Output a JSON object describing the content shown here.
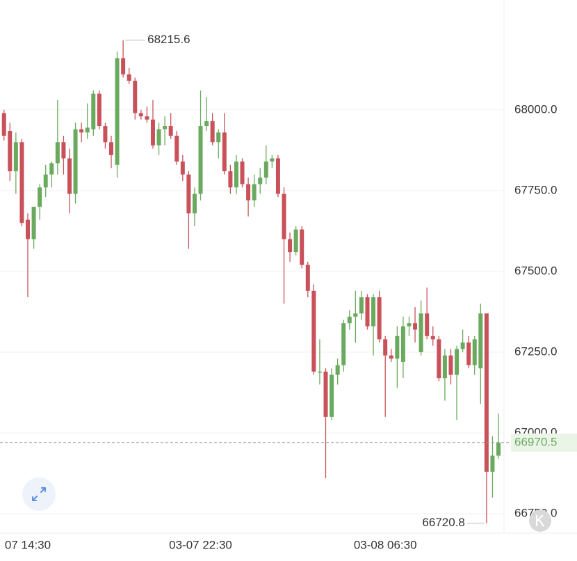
{
  "chart_data": {
    "type": "candlestick",
    "categories": [
      null,
      null,
      null,
      null,
      "07 14:30",
      null,
      null,
      null,
      null,
      null,
      null,
      null,
      null,
      null,
      null,
      null,
      null,
      null,
      null,
      null,
      null,
      null,
      null,
      null,
      null,
      null,
      null,
      null,
      null,
      null,
      null,
      null,
      null,
      "03-07 22:30",
      null,
      null,
      null,
      null,
      null,
      null,
      null,
      null,
      null,
      null,
      null,
      null,
      null,
      null,
      null,
      null,
      null,
      null,
      null,
      null,
      null,
      null,
      null,
      null,
      null,
      null,
      null,
      null,
      null,
      null,
      "03-08 06:30",
      null,
      null,
      null,
      null,
      null,
      null,
      null,
      null,
      null,
      null,
      null,
      null,
      null,
      null,
      null,
      null,
      null,
      null,
      null
    ],
    "open": [
      67990,
      67935,
      67810,
      67900,
      67660,
      67600,
      67700,
      67760,
      67800,
      67835,
      67900,
      67850,
      67740,
      67940,
      67930,
      67940,
      68050,
      67950,
      67900,
      67830,
      68160,
      68110,
      68090,
      67990,
      67980,
      67970,
      67890,
      67940,
      67950,
      67920,
      67840,
      67800,
      67680,
      67740,
      67950,
      67965,
      67900,
      67930,
      67810,
      67760,
      67840,
      67770,
      67720,
      67770,
      67790,
      67840,
      67850,
      67740,
      67600,
      67560,
      67630,
      67520,
      67440,
      67190,
      67190,
      67050,
      67180,
      67210,
      67340,
      67360,
      67370,
      67420,
      67330,
      67420,
      67290,
      67240,
      67230,
      67220,
      67330,
      67340,
      67250,
      67370,
      67300,
      67290,
      67170,
      67240,
      67180,
      67260,
      67280,
      67210,
      67200,
      67370,
      66880,
      66930
    ],
    "high": [
      68000,
      67960,
      67930,
      67910,
      67680,
      67700,
      67770,
      67830,
      67840,
      68030,
      67920,
      67880,
      67960,
      67960,
      68020,
      68060,
      68060,
      67960,
      67920,
      68180,
      68215.6,
      68130,
      68100,
      68000,
      68010,
      68030,
      67960,
      67980,
      67990,
      67935,
      67860,
      67810,
      67760,
      68060,
      68040,
      67990,
      67940,
      67990,
      67830,
      67860,
      67850,
      67790,
      67800,
      67820,
      67890,
      67860,
      67860,
      67760,
      67620,
      67640,
      67640,
      67530,
      67460,
      67290,
      67200,
      67200,
      67230,
      67350,
      67380,
      67440,
      67440,
      67430,
      67430,
      67440,
      67300,
      67260,
      67330,
      67360,
      67360,
      67390,
      67410,
      67450,
      67330,
      67300,
      67260,
      67260,
      67270,
      67320,
      67300,
      67300,
      67400,
      67370,
      66990,
      67060
    ],
    "low": [
      67905,
      67780,
      67740,
      67640,
      67420,
      67570,
      67660,
      67730,
      67760,
      67800,
      67800,
      67680,
      67710,
      67900,
      67910,
      67920,
      67940,
      67880,
      67820,
      67790,
      68100,
      68080,
      67970,
      67970,
      67960,
      67880,
      67860,
      67890,
      67910,
      67830,
      67780,
      67570,
      67640,
      67720,
      67935,
      67890,
      67850,
      67800,
      67740,
      67740,
      67760,
      67670,
      67700,
      67740,
      67770,
      67820,
      67730,
      67400,
      67530,
      67550,
      67510,
      67420,
      67180,
      67150,
      66860,
      67040,
      67150,
      67190,
      67320,
      67280,
      67350,
      67320,
      67240,
      67280,
      67050,
      67220,
      67140,
      67170,
      67300,
      67280,
      67240,
      67290,
      67270,
      67160,
      67100,
      67150,
      67040,
      67250,
      67200,
      67180,
      67090,
      66720.8,
      66800,
      66920
    ],
    "close": [
      67920,
      67810,
      67900,
      67650,
      67600,
      67700,
      67760,
      67800,
      67835,
      67900,
      67850,
      67740,
      67940,
      67930,
      67945,
      68050,
      67950,
      67900,
      67860,
      68160,
      68110,
      68090,
      67990,
      67980,
      67970,
      67890,
      67940,
      67950,
      67920,
      67840,
      67800,
      67680,
      67740,
      67950,
      67965,
      67900,
      67930,
      67810,
      67760,
      67840,
      67770,
      67720,
      67770,
      67790,
      67840,
      67850,
      67740,
      67600,
      67560,
      67630,
      67520,
      67440,
      67190,
      67190,
      67050,
      67180,
      67210,
      67340,
      67360,
      67370,
      67420,
      67330,
      67420,
      67290,
      67240,
      67230,
      67300,
      67330,
      67340,
      67320,
      67370,
      67300,
      67290,
      67170,
      67240,
      67180,
      67260,
      67280,
      67210,
      67290,
      67370,
      66880,
      66930,
      66970.5
    ],
    "up_color": "#6aaa5e",
    "down_color": "#c9525a",
    "ylim": [
      66690,
      68340
    ],
    "yticks": [
      {
        "value": 66750,
        "label": "66750.0"
      },
      {
        "value": 67000,
        "label": "67000.0"
      },
      {
        "value": 67250,
        "label": "67250.0"
      },
      {
        "value": 67500,
        "label": "67500.0"
      },
      {
        "value": 67750,
        "label": "67750.0"
      },
      {
        "value": 68000,
        "label": "68000.0"
      }
    ],
    "grid": true,
    "high_label": "68215.6",
    "low_label": "66720.8",
    "last_price": {
      "value": 66970.5,
      "label": "66970.5"
    }
  }
}
